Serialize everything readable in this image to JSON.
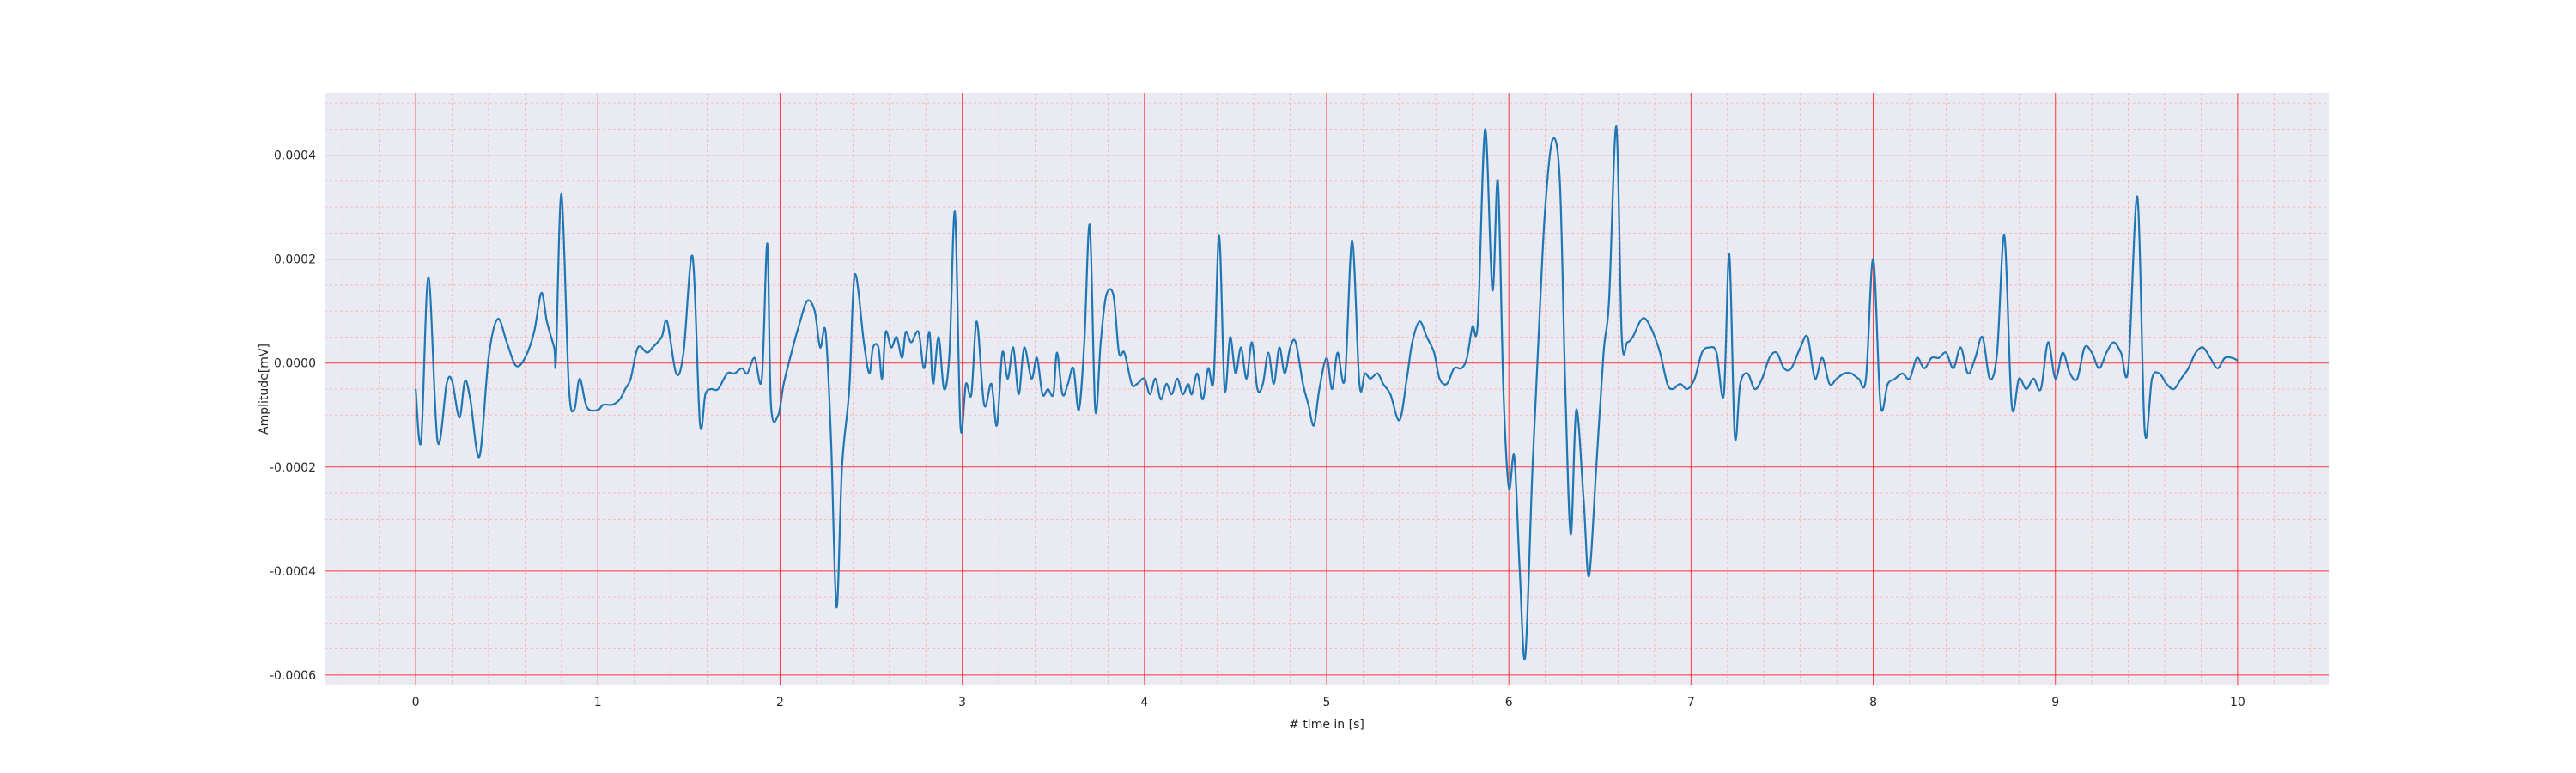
{
  "chart_data": {
    "type": "line",
    "title": "",
    "xlabel": "# time in [s]",
    "ylabel": "Amplitude[mV]",
    "xlim": [
      -0.5,
      10.5
    ],
    "ylim": [
      -0.00062,
      0.00052
    ],
    "x_ticks": [
      0,
      1,
      2,
      3,
      4,
      5,
      6,
      7,
      8,
      9,
      10
    ],
    "x_tick_labels": [
      "0",
      "1",
      "2",
      "3",
      "4",
      "5",
      "6",
      "7",
      "8",
      "9",
      "10"
    ],
    "y_ticks": [
      -0.0006,
      -0.0004,
      -0.0002,
      0.0,
      0.0002,
      0.0004
    ],
    "y_tick_labels": [
      "-0.0006",
      "-0.0004",
      "-0.0002",
      "0.0000",
      "0.0002",
      "0.0004"
    ],
    "grid": {
      "major": true,
      "minor": true,
      "major_color": "#ff0000",
      "minor_color": "#ff9999"
    },
    "background_color": "#eaeaf2",
    "series": [
      {
        "color": "#1f77b4",
        "points": [
          [
            0.0,
            -5e-05
          ],
          [
            0.03,
            -0.00015
          ],
          [
            0.07,
            0.000165
          ],
          [
            0.12,
            -0.00015
          ],
          [
            0.17,
            -4e-05
          ],
          [
            0.2,
            -3.5e-05
          ],
          [
            0.24,
            -0.000105
          ],
          [
            0.27,
            -3.5e-05
          ],
          [
            0.3,
            -7e-05
          ],
          [
            0.35,
            -0.00018
          ],
          [
            0.4,
            1e-05
          ],
          [
            0.45,
            8.5e-05
          ],
          [
            0.5,
            4e-05
          ],
          [
            0.55,
            -5e-06
          ],
          [
            0.6,
            1e-05
          ],
          [
            0.65,
            6e-05
          ],
          [
            0.69,
            0.000135
          ],
          [
            0.72,
            8e-05
          ],
          [
            0.76,
            3e-05
          ],
          [
            0.77,
            1e-05
          ],
          [
            0.8,
            0.000325
          ],
          [
            0.84,
            -4e-05
          ],
          [
            0.87,
            -9e-05
          ],
          [
            0.9,
            -3e-05
          ],
          [
            0.94,
            -8.5e-05
          ],
          [
            1.0,
            -9e-05
          ],
          [
            1.03,
            -8e-05
          ],
          [
            1.08,
            -8e-05
          ],
          [
            1.12,
            -7e-05
          ],
          [
            1.15,
            -5e-05
          ],
          [
            1.18,
            -3e-05
          ],
          [
            1.22,
            3e-05
          ],
          [
            1.27,
            2e-05
          ],
          [
            1.3,
            3e-05
          ],
          [
            1.35,
            5e-05
          ],
          [
            1.38,
            8e-05
          ],
          [
            1.43,
            -2e-05
          ],
          [
            1.47,
            2e-05
          ],
          [
            1.52,
            0.000205
          ],
          [
            1.56,
            -0.000115
          ],
          [
            1.59,
            -6e-05
          ],
          [
            1.62,
            -5e-05
          ],
          [
            1.66,
            -5e-05
          ],
          [
            1.71,
            -2e-05
          ],
          [
            1.75,
            -2e-05
          ],
          [
            1.79,
            -1e-05
          ],
          [
            1.82,
            -2e-05
          ],
          [
            1.86,
            1e-05
          ],
          [
            1.9,
            -3e-05
          ],
          [
            1.93,
            0.00023
          ],
          [
            1.95,
            -8e-05
          ],
          [
            1.99,
            -0.0001
          ],
          [
            2.02,
            -4e-05
          ],
          [
            2.07,
            3e-05
          ],
          [
            2.11,
            8e-05
          ],
          [
            2.15,
            0.00012
          ],
          [
            2.19,
            0.0001
          ],
          [
            2.22,
            3e-05
          ],
          [
            2.25,
            6e-05
          ],
          [
            2.28,
            -0.00015
          ],
          [
            2.31,
            -0.00047
          ],
          [
            2.34,
            -0.0002
          ],
          [
            2.38,
            -5e-05
          ],
          [
            2.41,
            0.00017
          ],
          [
            2.46,
            4e-05
          ],
          [
            2.49,
            -2e-05
          ],
          [
            2.51,
            3e-05
          ],
          [
            2.54,
            3e-05
          ],
          [
            2.56,
            -3e-05
          ],
          [
            2.58,
            6e-05
          ],
          [
            2.61,
            3e-05
          ],
          [
            2.64,
            5e-05
          ],
          [
            2.67,
            1e-05
          ],
          [
            2.69,
            6e-05
          ],
          [
            2.72,
            4e-05
          ],
          [
            2.76,
            6e-05
          ],
          [
            2.79,
            -1e-05
          ],
          [
            2.82,
            6e-05
          ],
          [
            2.84,
            -4e-05
          ],
          [
            2.87,
            5e-05
          ],
          [
            2.9,
            -5e-05
          ],
          [
            2.93,
            2e-05
          ],
          [
            2.96,
            0.00029
          ],
          [
            2.99,
            -0.00012
          ],
          [
            3.02,
            -4e-05
          ],
          [
            3.05,
            -6e-05
          ],
          [
            3.08,
            8e-05
          ],
          [
            3.12,
            -8e-05
          ],
          [
            3.16,
            -4e-05
          ],
          [
            3.19,
            -0.00012
          ],
          [
            3.22,
            2e-05
          ],
          [
            3.25,
            -3e-05
          ],
          [
            3.28,
            3e-05
          ],
          [
            3.31,
            -6e-05
          ],
          [
            3.34,
            3e-05
          ],
          [
            3.38,
            -3e-05
          ],
          [
            3.41,
            1e-05
          ],
          [
            3.44,
            -6e-05
          ],
          [
            3.47,
            -5e-05
          ],
          [
            3.5,
            -6e-05
          ],
          [
            3.52,
            2e-05
          ],
          [
            3.55,
            -6e-05
          ],
          [
            3.58,
            -4e-05
          ],
          [
            3.61,
            -1e-05
          ],
          [
            3.64,
            -9e-05
          ],
          [
            3.67,
            4e-05
          ],
          [
            3.7,
            0.000265
          ],
          [
            3.73,
            -9e-05
          ],
          [
            3.76,
            4e-05
          ],
          [
            3.79,
            0.00013
          ],
          [
            3.83,
            0.00013
          ],
          [
            3.86,
            2e-05
          ],
          [
            3.89,
            2e-05
          ],
          [
            3.93,
            -4e-05
          ],
          [
            3.96,
            -4e-05
          ],
          [
            4.0,
            -3e-05
          ],
          [
            4.03,
            -6e-05
          ],
          [
            4.06,
            -3e-05
          ],
          [
            4.09,
            -7e-05
          ],
          [
            4.12,
            -4e-05
          ],
          [
            4.15,
            -6e-05
          ],
          [
            4.18,
            -3e-05
          ],
          [
            4.21,
            -6e-05
          ],
          [
            4.24,
            -4e-05
          ],
          [
            4.26,
            -6e-05
          ],
          [
            4.29,
            -2e-05
          ],
          [
            4.32,
            -7e-05
          ],
          [
            4.35,
            -1e-05
          ],
          [
            4.38,
            -3e-05
          ],
          [
            4.41,
            0.000245
          ],
          [
            4.44,
            -5e-05
          ],
          [
            4.47,
            5e-05
          ],
          [
            4.5,
            -2e-05
          ],
          [
            4.53,
            3e-05
          ],
          [
            4.56,
            -3e-05
          ],
          [
            4.59,
            4e-05
          ],
          [
            4.62,
            -5e-05
          ],
          [
            4.65,
            -4e-05
          ],
          [
            4.68,
            2e-05
          ],
          [
            4.71,
            -4e-05
          ],
          [
            4.74,
            3e-05
          ],
          [
            4.77,
            -2e-05
          ],
          [
            4.8,
            3e-05
          ],
          [
            4.83,
            4e-05
          ],
          [
            4.87,
            -4e-05
          ],
          [
            4.9,
            -8e-05
          ],
          [
            4.93,
            -0.00012
          ],
          [
            4.96,
            -5e-05
          ],
          [
            5.0,
            1e-05
          ],
          [
            5.03,
            -5e-05
          ],
          [
            5.06,
            2e-05
          ],
          [
            5.1,
            -3e-05
          ],
          [
            5.14,
            0.000235
          ],
          [
            5.18,
            -4e-05
          ],
          [
            5.21,
            -2e-05
          ],
          [
            5.24,
            -3e-05
          ],
          [
            5.28,
            -2e-05
          ],
          [
            5.31,
            -4e-05
          ],
          [
            5.35,
            -6e-05
          ],
          [
            5.4,
            -0.00011
          ],
          [
            5.44,
            -3e-05
          ],
          [
            5.47,
            4e-05
          ],
          [
            5.51,
            8e-05
          ],
          [
            5.55,
            5e-05
          ],
          [
            5.59,
            2e-05
          ],
          [
            5.62,
            -3e-05
          ],
          [
            5.66,
            -4e-05
          ],
          [
            5.7,
            -1e-05
          ],
          [
            5.74,
            -1e-05
          ],
          [
            5.77,
            1e-05
          ],
          [
            5.8,
            7e-05
          ],
          [
            5.83,
            8e-05
          ],
          [
            5.87,
            0.00045
          ],
          [
            5.91,
            0.00014
          ],
          [
            5.94,
            0.00035
          ],
          [
            5.97,
            -5e-05
          ],
          [
            6.0,
            -0.00024
          ],
          [
            6.03,
            -0.00018
          ],
          [
            6.06,
            -0.0004
          ],
          [
            6.09,
            -0.000565
          ],
          [
            6.13,
            -0.0002
          ],
          [
            6.17,
            0.0001
          ],
          [
            6.2,
            0.0003
          ],
          [
            6.24,
            0.00043
          ],
          [
            6.28,
            0.00035
          ],
          [
            6.31,
            -5e-05
          ],
          [
            6.34,
            -0.00033
          ],
          [
            6.37,
            -9e-05
          ],
          [
            6.41,
            -0.00026
          ],
          [
            6.44,
            -0.00041
          ],
          [
            6.48,
            -0.0002
          ],
          [
            6.52,
            2e-05
          ],
          [
            6.55,
            0.00012
          ],
          [
            6.59,
            0.000455
          ],
          [
            6.62,
            5e-05
          ],
          [
            6.65,
            4e-05
          ],
          [
            6.68,
            5e-05
          ],
          [
            6.72,
            8e-05
          ],
          [
            6.75,
            8.5e-05
          ],
          [
            6.79,
            6e-05
          ],
          [
            6.83,
            2e-05
          ],
          [
            6.87,
            -4e-05
          ],
          [
            6.9,
            -5e-05
          ],
          [
            6.94,
            -4e-05
          ],
          [
            6.98,
            -5e-05
          ],
          [
            7.02,
            -3e-05
          ],
          [
            7.06,
            2e-05
          ],
          [
            7.1,
            3e-05
          ],
          [
            7.14,
            2e-05
          ],
          [
            7.18,
            -6e-05
          ],
          [
            7.21,
            0.00021
          ],
          [
            7.24,
            -0.00014
          ],
          [
            7.27,
            -4e-05
          ],
          [
            7.31,
            -2e-05
          ],
          [
            7.35,
            -5e-05
          ],
          [
            7.39,
            -3e-05
          ],
          [
            7.43,
            1e-05
          ],
          [
            7.47,
            2e-05
          ],
          [
            7.51,
            -1e-05
          ],
          [
            7.55,
            -1e-05
          ],
          [
            7.6,
            3e-05
          ],
          [
            7.64,
            5e-05
          ],
          [
            7.68,
            -3e-05
          ],
          [
            7.72,
            1e-05
          ],
          [
            7.76,
            -4e-05
          ],
          [
            7.8,
            -3e-05
          ],
          [
            7.84,
            -2e-05
          ],
          [
            7.88,
            -2e-05
          ],
          [
            7.92,
            -3e-05
          ],
          [
            7.96,
            -3e-05
          ],
          [
            8.0,
            0.0002
          ],
          [
            8.04,
            -8e-05
          ],
          [
            8.08,
            -4e-05
          ],
          [
            8.12,
            -3e-05
          ],
          [
            8.16,
            -2e-05
          ],
          [
            8.2,
            -3e-05
          ],
          [
            8.24,
            1e-05
          ],
          [
            8.28,
            -1e-05
          ],
          [
            8.32,
            1e-05
          ],
          [
            8.36,
            1e-05
          ],
          [
            8.4,
            2e-05
          ],
          [
            8.44,
            -1e-05
          ],
          [
            8.48,
            3e-05
          ],
          [
            8.52,
            -2e-05
          ],
          [
            8.56,
            1e-05
          ],
          [
            8.6,
            5e-05
          ],
          [
            8.64,
            -3e-05
          ],
          [
            8.68,
            2e-05
          ],
          [
            8.72,
            0.000245
          ],
          [
            8.76,
            -8e-05
          ],
          [
            8.8,
            -3e-05
          ],
          [
            8.84,
            -5e-05
          ],
          [
            8.88,
            -3e-05
          ],
          [
            8.92,
            -5e-05
          ],
          [
            8.96,
            4e-05
          ],
          [
            9.0,
            -3e-05
          ],
          [
            9.04,
            2e-05
          ],
          [
            9.08,
            -2e-05
          ],
          [
            9.12,
            -3e-05
          ],
          [
            9.16,
            3e-05
          ],
          [
            9.2,
            2e-05
          ],
          [
            9.24,
            -1e-05
          ],
          [
            9.28,
            2e-05
          ],
          [
            9.32,
            4e-05
          ],
          [
            9.36,
            2e-05
          ],
          [
            9.4,
            -1e-05
          ],
          [
            9.45,
            0.00032
          ],
          [
            9.49,
            -0.00013
          ],
          [
            9.53,
            -3e-05
          ],
          [
            9.57,
            -2e-05
          ],
          [
            9.61,
            -4e-05
          ],
          [
            9.65,
            -5e-05
          ],
          [
            9.69,
            -3e-05
          ],
          [
            9.73,
            -1e-05
          ],
          [
            9.77,
            2e-05
          ],
          [
            9.81,
            3e-05
          ],
          [
            9.85,
            1e-05
          ],
          [
            9.89,
            -1e-05
          ],
          [
            9.93,
            1e-05
          ],
          [
            9.97,
            1e-05
          ],
          [
            10.0,
            5e-06
          ]
        ]
      }
    ]
  }
}
